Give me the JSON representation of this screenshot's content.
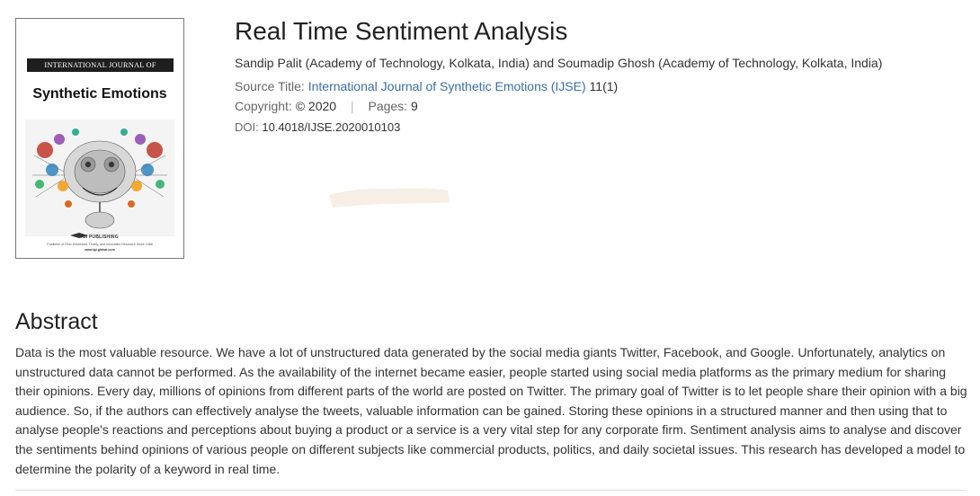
{
  "cover": {
    "journal_band": "INTERNATIONAL JOURNAL OF",
    "journal_title": "Synthetic Emotions",
    "publisher": "IGI PUBLISHING",
    "tagline": "Publisher of Peer-Reviewed, Timely, and Innovative Research Since 1988",
    "url": "www.igi-global.com"
  },
  "article": {
    "title": "Real Time Sentiment Analysis",
    "authors": "Sandip Palit (Academy of Technology, Kolkata, India) and Soumadip Ghosh (Academy of Technology, Kolkata, India)",
    "source_label": "Source Title:",
    "source_title": "International Journal of Synthetic Emotions (IJSE)",
    "source_issue": "11(1)",
    "copyright_label": "Copyright:",
    "copyright_value": "© 2020",
    "separator": "|",
    "pages_label": "Pages:",
    "pages_value": "9",
    "doi_label": "DOI:",
    "doi_value": "10.4018/IJSE.2020010103"
  },
  "abstract": {
    "heading": "Abstract",
    "text": "Data is the most valuable resource. We have a lot of unstructured data generated by the social media giants Twitter, Facebook, and Google. Unfortunately, analytics on unstructured data cannot be performed. As the availability of the internet became easier, people started using social media platforms as the primary medium for sharing their opinions. Every day, millions of opinions from different parts of the world are posted on Twitter. The primary goal of Twitter is to let people share their opinion with a big audience. So, if the authors can effectively analyse the tweets, valuable information can be gained. Storing these opinions in a structured manner and then using that to analyse people's reactions and perceptions about buying a product or a service is a very vital step for any corporate firm. Sentiment analysis aims to analyse and discover the sentiments behind opinions of various people on different subjects like commercial products, politics, and daily societal issues. This research has developed a model to determine the polarity of a keyword in real time."
  },
  "colors": {
    "link": "#3a6ea8",
    "text": "#333333",
    "label": "#666666"
  }
}
